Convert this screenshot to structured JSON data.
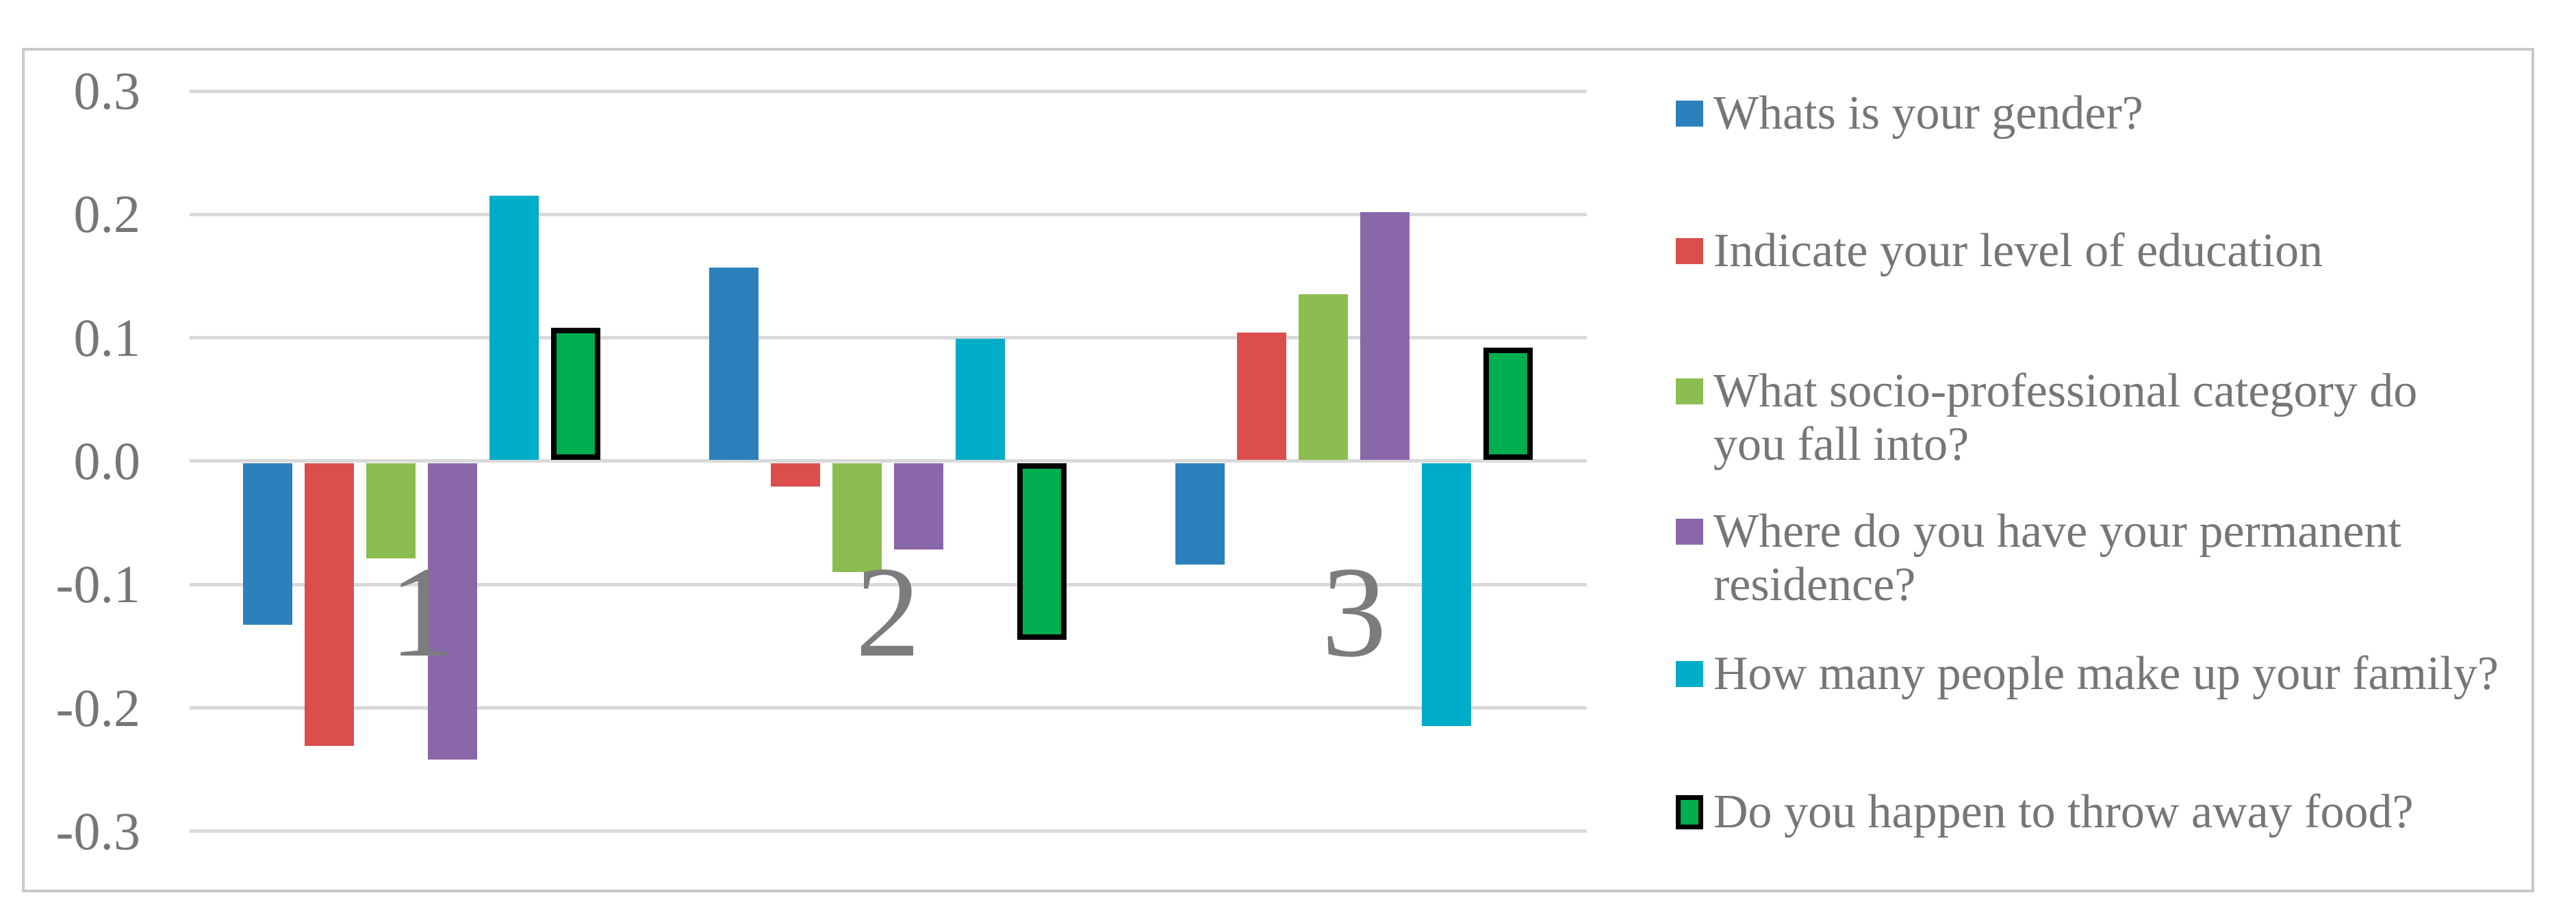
{
  "chart_data": {
    "type": "bar",
    "title": "",
    "categories": [
      "1",
      "2",
      "3"
    ],
    "series": [
      {
        "name": "Whats is your gender?",
        "color": "#2c80bc",
        "values": [
          -0.131,
          0.156,
          -0.082
        ]
      },
      {
        "name": "Indicate your level of education",
        "color": "#db4e4c",
        "values": [
          -0.229,
          -0.019,
          0.103
        ]
      },
      {
        "name": "What socio-professional category do you fall into?",
        "color": "#8cbd50",
        "values": [
          -0.077,
          -0.088,
          0.134
        ]
      },
      {
        "name": "Where do you have your permanent residence?",
        "color": "#8a67a9",
        "values": [
          -0.24,
          -0.07,
          0.201
        ]
      },
      {
        "name": "How many people make up your family?",
        "color": "#00adc8",
        "values": [
          0.214,
          0.098,
          -0.213
        ]
      },
      {
        "name": "Do you happen to throw away food?",
        "color": "#00ae4f",
        "border_color": "#000000",
        "values": [
          0.107,
          -0.143,
          0.091
        ]
      }
    ],
    "ylim": [
      -0.3,
      0.3
    ],
    "ytick_labels": [
      "0.3",
      "0.2",
      "0.1",
      "0.0",
      "-0.1",
      "-0.2",
      "-0.3"
    ],
    "grid": true,
    "gridline_color": "#d9d9d9",
    "frame_border_color": "#c9c9c9",
    "axis_text_color": "#767676",
    "category_label_color": "#7c7c7c",
    "legend_position": "right",
    "legend_entries": [
      {
        "lines": [
          "Whats is your gender?"
        ],
        "color": "#2c80bc"
      },
      {
        "lines": [
          "Indicate your level of education"
        ],
        "color": "#db4e4c"
      },
      {
        "lines": [
          "What socio-professional category do",
          "you fall into?"
        ],
        "color": "#8cbd50"
      },
      {
        "lines": [
          "Where do you have your permanent",
          "residence?"
        ],
        "color": "#8a67a9"
      },
      {
        "lines": [
          "How many people make up your family?"
        ],
        "color": "#00adc8"
      },
      {
        "lines": [
          "Do you happen to throw away food?"
        ],
        "color": "#00ae4f",
        "border_color": "#000000"
      }
    ]
  }
}
